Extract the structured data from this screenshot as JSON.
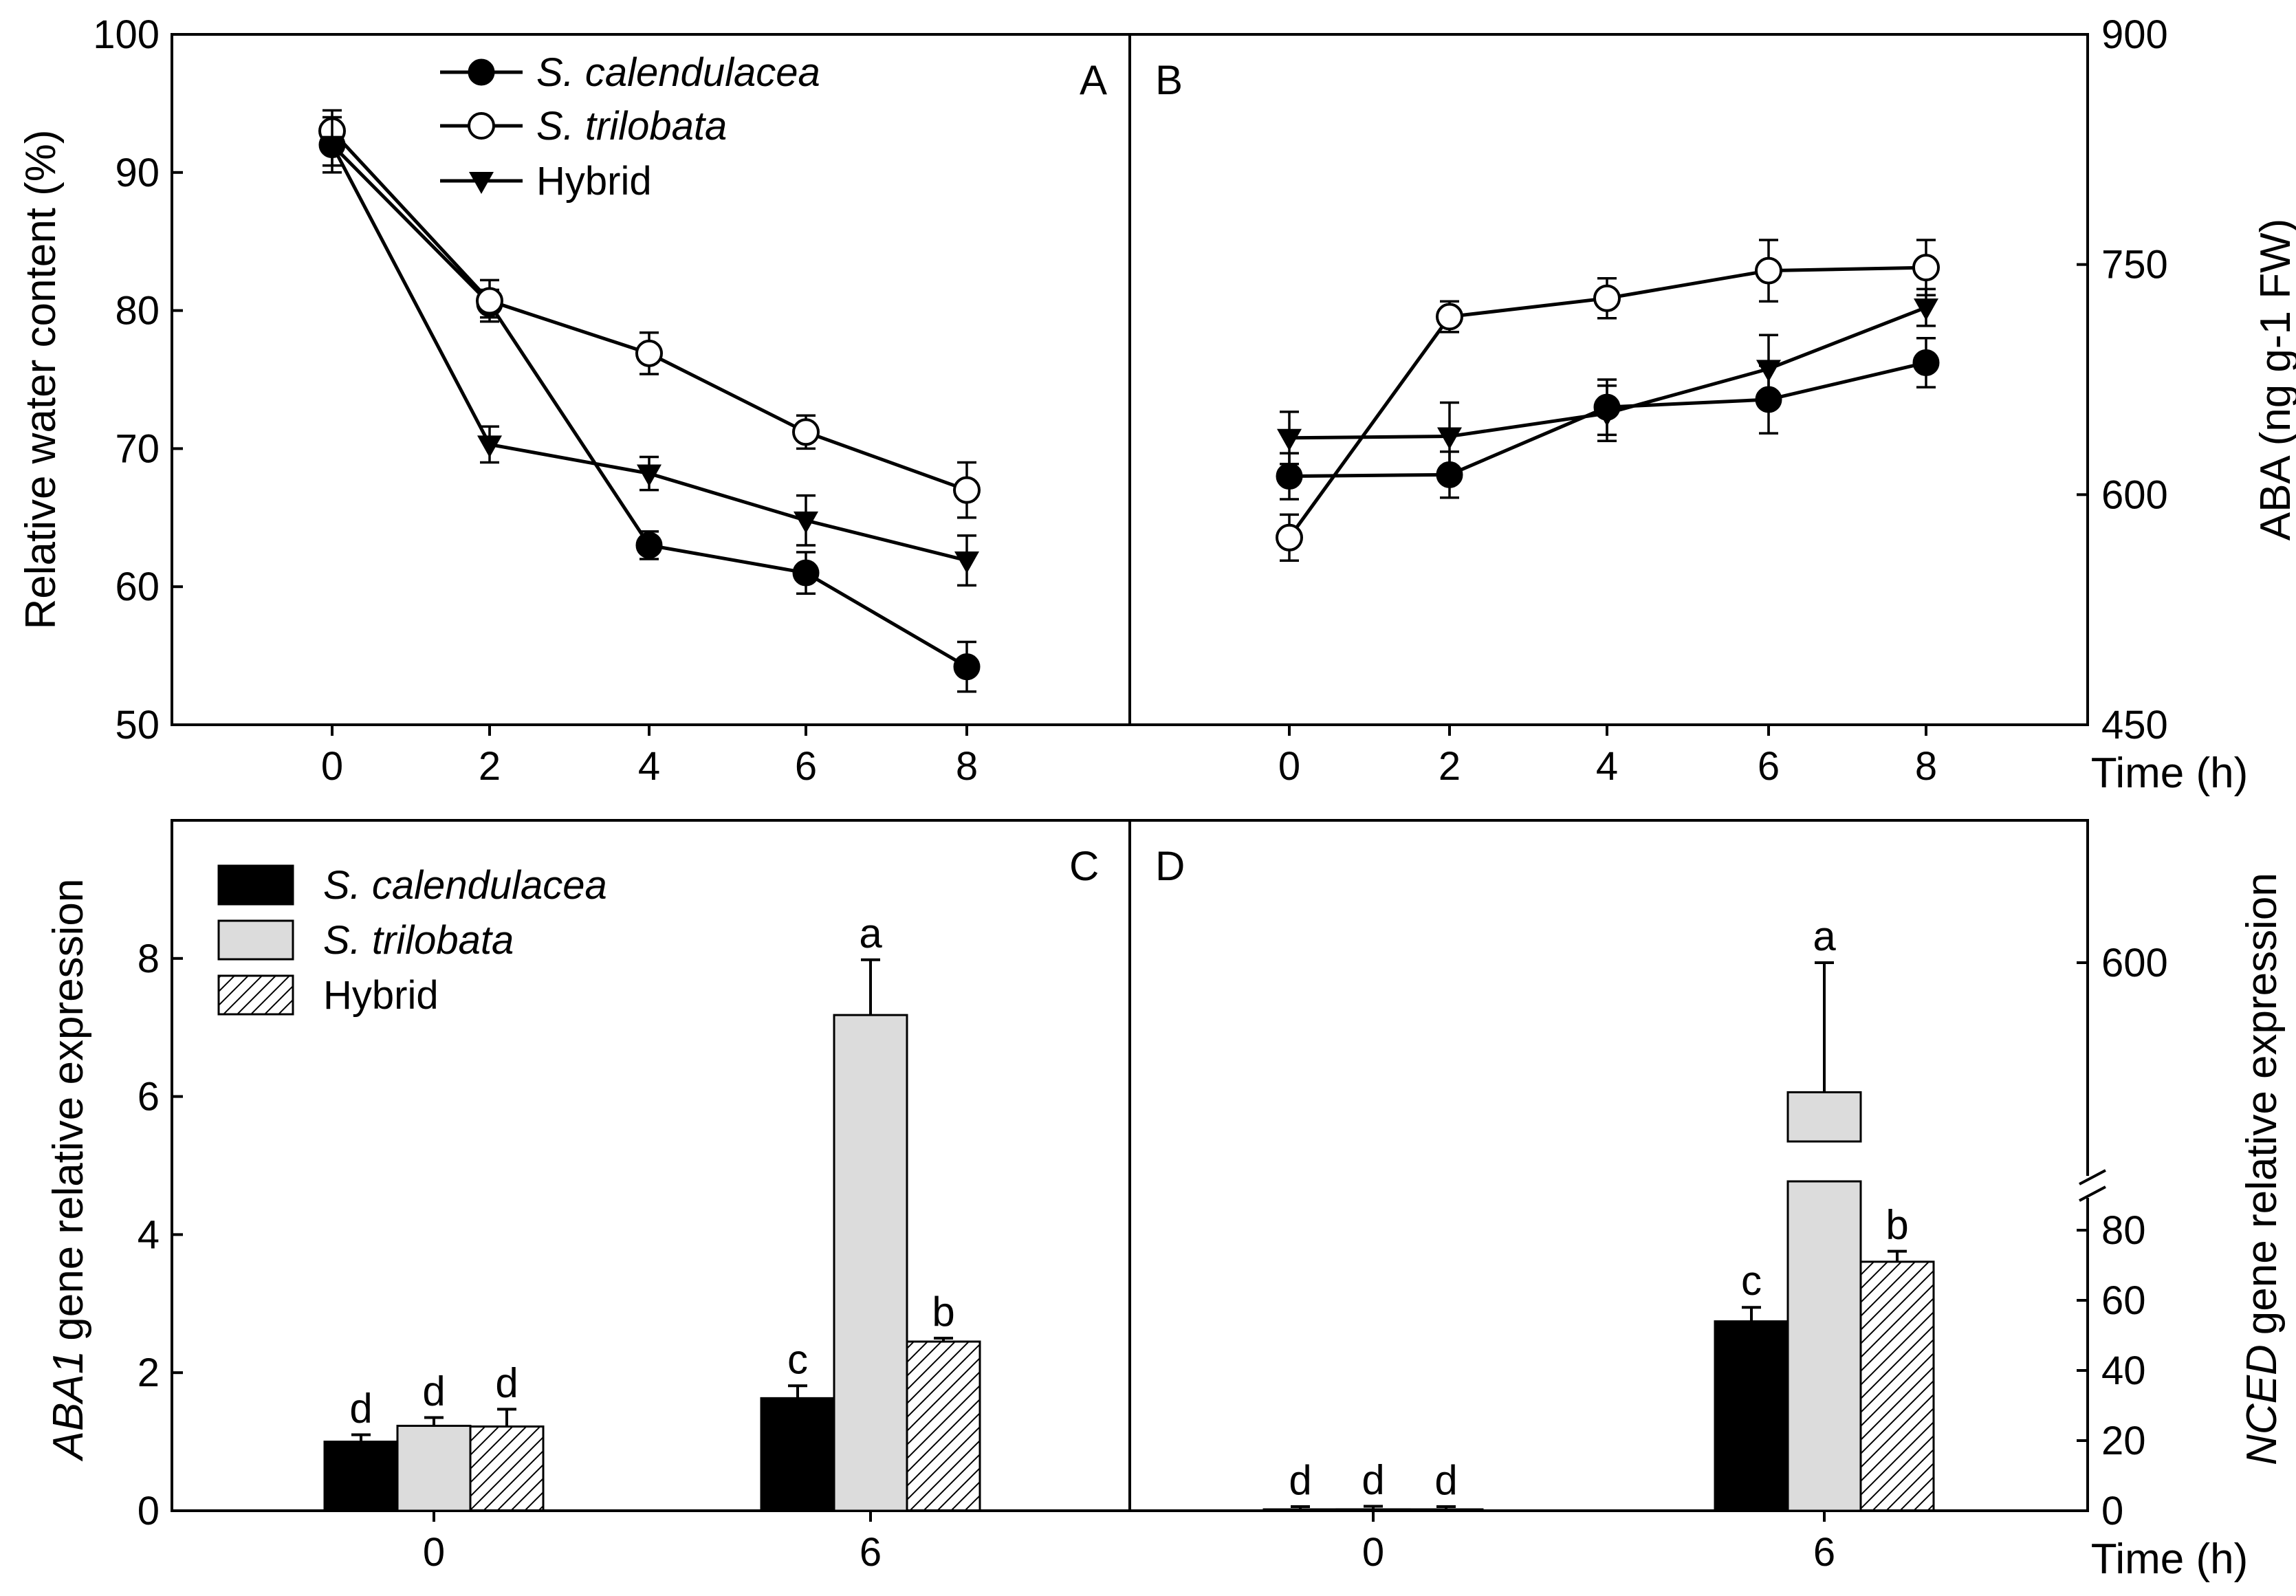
{
  "chart_data": [
    {
      "panel": "A",
      "type": "line",
      "ylabel": "Relative water content (%)",
      "ylim": [
        50,
        100
      ],
      "yticks": [
        50,
        60,
        70,
        80,
        90,
        100
      ],
      "x": [
        0,
        2,
        4,
        6,
        8
      ],
      "xticks": [
        "0",
        "2",
        "4",
        "6",
        "8"
      ],
      "series": [
        {
          "name": "S. calendulacea",
          "marker": "filled-circle",
          "values": [
            92.0,
            80.5,
            63.0,
            61.0,
            54.2
          ],
          "errors": [
            1.5,
            1.0,
            1.0,
            1.5,
            1.8
          ]
        },
        {
          "name": "S. trilobata",
          "marker": "open-circle",
          "values": [
            93.0,
            80.7,
            76.9,
            71.2,
            67.0
          ],
          "errors": [
            1.5,
            1.5,
            1.5,
            1.2,
            2.0
          ]
        },
        {
          "name": "Hybrid",
          "marker": "triangle-down",
          "values": [
            92.0,
            70.3,
            68.2,
            64.8,
            61.9
          ],
          "errors": [
            2.0,
            1.3,
            1.2,
            1.8,
            1.8
          ]
        }
      ]
    },
    {
      "panel": "B",
      "type": "line",
      "ylabel": "ABA (ng g-1 FW)",
      "ylim": [
        450,
        900
      ],
      "yticks": [
        450,
        600,
        750,
        900
      ],
      "x": [
        0,
        2,
        4,
        6,
        8
      ],
      "xticks": [
        "0",
        "2",
        "4",
        "6",
        "8"
      ],
      "xlabel": "Time (h)",
      "series": [
        {
          "name": "S. calendulacea",
          "marker": "filled-circle",
          "values": [
            612,
            613,
            657,
            662,
            686
          ],
          "errors": [
            15,
            15,
            18,
            22,
            16
          ]
        },
        {
          "name": "S. trilobata",
          "marker": "open-circle",
          "values": [
            572,
            716,
            728,
            746,
            748
          ],
          "errors": [
            15,
            10,
            13,
            20,
            18
          ]
        },
        {
          "name": "Hybrid",
          "marker": "triangle-down",
          "values": [
            637,
            638,
            653,
            682,
            722
          ],
          "errors": [
            17,
            22,
            18,
            22,
            12
          ]
        }
      ]
    },
    {
      "panel": "C",
      "type": "bar",
      "ylabel_italic": "ABA1",
      "ylabel_rest": "gene relative expression",
      "ylim": [
        0,
        10
      ],
      "yticks": [
        0,
        2,
        4,
        6,
        8
      ],
      "categories": [
        "0",
        "6"
      ],
      "series": [
        {
          "name": "S. calendulacea",
          "fill": "black",
          "values": [
            1.0,
            1.63
          ],
          "errors": [
            0.1,
            0.18
          ],
          "labels": [
            "d",
            "c"
          ]
        },
        {
          "name": "S. trilobata",
          "fill": "lightgray",
          "values": [
            1.23,
            7.18
          ],
          "errors": [
            0.12,
            0.8
          ],
          "labels": [
            "d",
            "a"
          ]
        },
        {
          "name": "Hybrid",
          "fill": "hatched",
          "values": [
            1.22,
            2.45
          ],
          "errors": [
            0.25,
            0.05
          ],
          "labels": [
            "d",
            "b"
          ]
        }
      ]
    },
    {
      "panel": "D",
      "type": "bar",
      "ylabel_italic": "NCED",
      "ylabel_rest": "gene relative expression",
      "xlabel": "Time (h)",
      "axis_break": [
        90,
        500
      ],
      "yticks": [
        0,
        20,
        40,
        60,
        80,
        600
      ],
      "categories": [
        "0",
        "6"
      ],
      "series": [
        {
          "name": "S. calendulacea",
          "fill": "black",
          "values": [
            0.3,
            54
          ],
          "errors": [
            0.1,
            4
          ],
          "labels": [
            "d",
            "c"
          ]
        },
        {
          "name": "S. trilobata",
          "fill": "lightgray",
          "values": [
            0.4,
            540
          ],
          "errors": [
            0.1,
            60
          ],
          "labels": [
            "d",
            "a"
          ]
        },
        {
          "name": "Hybrid",
          "fill": "hatched",
          "values": [
            0.3,
            71
          ],
          "errors": [
            0.1,
            3
          ],
          "labels": [
            "d",
            "b"
          ]
        }
      ]
    }
  ]
}
